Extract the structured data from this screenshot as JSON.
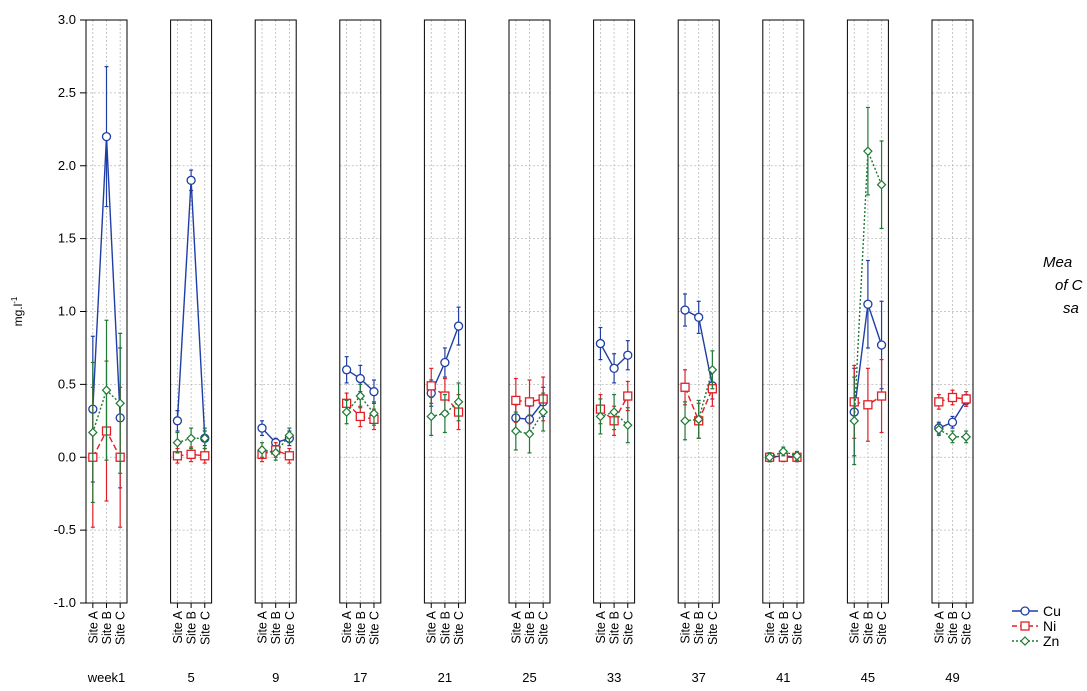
{
  "chart_data": {
    "type": "line",
    "ylabel": "mg.l",
    "ylabel_superscript": "-1",
    "ylim": [
      -1.0,
      3.0
    ],
    "yticks": [
      "-1.0",
      "-0.5",
      "0.0",
      "0.5",
      "1.0",
      "1.5",
      "2.0",
      "2.5",
      "3.0"
    ],
    "grid": true,
    "legend_position": "bottom-right",
    "site_categories": [
      "Site A",
      "Site B",
      "Site C"
    ],
    "weeks": [
      "week1",
      "5",
      "9",
      "17",
      "21",
      "25",
      "33",
      "37",
      "41",
      "45",
      "49"
    ],
    "side_text": [
      "Mea",
      "of C",
      "sa"
    ],
    "series": [
      {
        "name": "Cu",
        "color": "#1f3ea6",
        "marker": "circle",
        "line": "solid",
        "values": [
          [
            0.33,
            2.2,
            0.27
          ],
          [
            0.25,
            1.9,
            0.13
          ],
          [
            0.2,
            0.1,
            0.13
          ],
          [
            0.6,
            0.54,
            0.45
          ],
          [
            0.44,
            0.65,
            0.9
          ],
          [
            0.27,
            0.26,
            0.38
          ],
          [
            0.78,
            0.61,
            0.7
          ],
          [
            1.01,
            0.96,
            0.49
          ],
          [
            0.0,
            0.01,
            0.0
          ],
          [
            0.31,
            1.05,
            0.77
          ],
          [
            0.2,
            0.24,
            0.39
          ]
        ],
        "errors": [
          [
            0.5,
            0.48,
            0.48
          ],
          [
            0.07,
            0.07,
            0.05
          ],
          [
            0.05,
            0.03,
            0.05
          ],
          [
            0.09,
            0.09,
            0.08
          ],
          [
            0.09,
            0.1,
            0.13
          ],
          [
            0.09,
            0.09,
            0.1
          ],
          [
            0.11,
            0.1,
            0.1
          ],
          [
            0.11,
            0.11,
            0.09
          ],
          [
            0.03,
            0.03,
            0.03
          ],
          [
            0.3,
            0.3,
            0.3
          ],
          [
            0.04,
            0.04,
            0.04
          ]
        ]
      },
      {
        "name": "Ni",
        "color": "#e21f26",
        "marker": "square",
        "line": "dashed",
        "values": [
          [
            0.0,
            0.18,
            0.0
          ],
          [
            0.01,
            0.02,
            0.01
          ],
          [
            0.02,
            0.05,
            0.01
          ],
          [
            0.37,
            0.28,
            0.26
          ],
          [
            0.49,
            0.42,
            0.31
          ],
          [
            0.39,
            0.38,
            0.4
          ],
          [
            0.33,
            0.25,
            0.42
          ],
          [
            0.48,
            0.25,
            0.47
          ],
          [
            0.0,
            0.0,
            0.0
          ],
          [
            0.38,
            0.36,
            0.42
          ],
          [
            0.38,
            0.41,
            0.4
          ]
        ],
        "errors": [
          [
            0.48,
            0.48,
            0.48
          ],
          [
            0.05,
            0.05,
            0.05
          ],
          [
            0.05,
            0.05,
            0.05
          ],
          [
            0.07,
            0.07,
            0.07
          ],
          [
            0.12,
            0.12,
            0.12
          ],
          [
            0.15,
            0.15,
            0.15
          ],
          [
            0.1,
            0.1,
            0.1
          ],
          [
            0.12,
            0.12,
            0.12
          ],
          [
            0.03,
            0.03,
            0.03
          ],
          [
            0.25,
            0.25,
            0.25
          ],
          [
            0.05,
            0.05,
            0.05
          ]
        ]
      },
      {
        "name": "Zn",
        "color": "#1e7a35",
        "marker": "diamond",
        "line": "dotted",
        "values": [
          [
            0.17,
            0.46,
            0.37
          ],
          [
            0.1,
            0.13,
            0.13
          ],
          [
            0.05,
            0.03,
            0.15
          ],
          [
            0.31,
            0.42,
            0.3
          ],
          [
            0.28,
            0.3,
            0.38
          ],
          [
            0.18,
            0.16,
            0.31
          ],
          [
            0.28,
            0.31,
            0.22
          ],
          [
            0.25,
            0.26,
            0.6
          ],
          [
            0.0,
            0.04,
            0.01
          ],
          [
            0.25,
            2.1,
            1.87
          ],
          [
            0.19,
            0.14,
            0.14
          ]
        ],
        "errors": [
          [
            0.48,
            0.48,
            0.48
          ],
          [
            0.07,
            0.07,
            0.07
          ],
          [
            0.05,
            0.05,
            0.05
          ],
          [
            0.08,
            0.08,
            0.08
          ],
          [
            0.13,
            0.13,
            0.13
          ],
          [
            0.13,
            0.13,
            0.13
          ],
          [
            0.12,
            0.12,
            0.12
          ],
          [
            0.13,
            0.13,
            0.13
          ],
          [
            0.03,
            0.03,
            0.03
          ],
          [
            0.3,
            0.3,
            0.3
          ],
          [
            0.04,
            0.04,
            0.04
          ]
        ]
      }
    ]
  }
}
